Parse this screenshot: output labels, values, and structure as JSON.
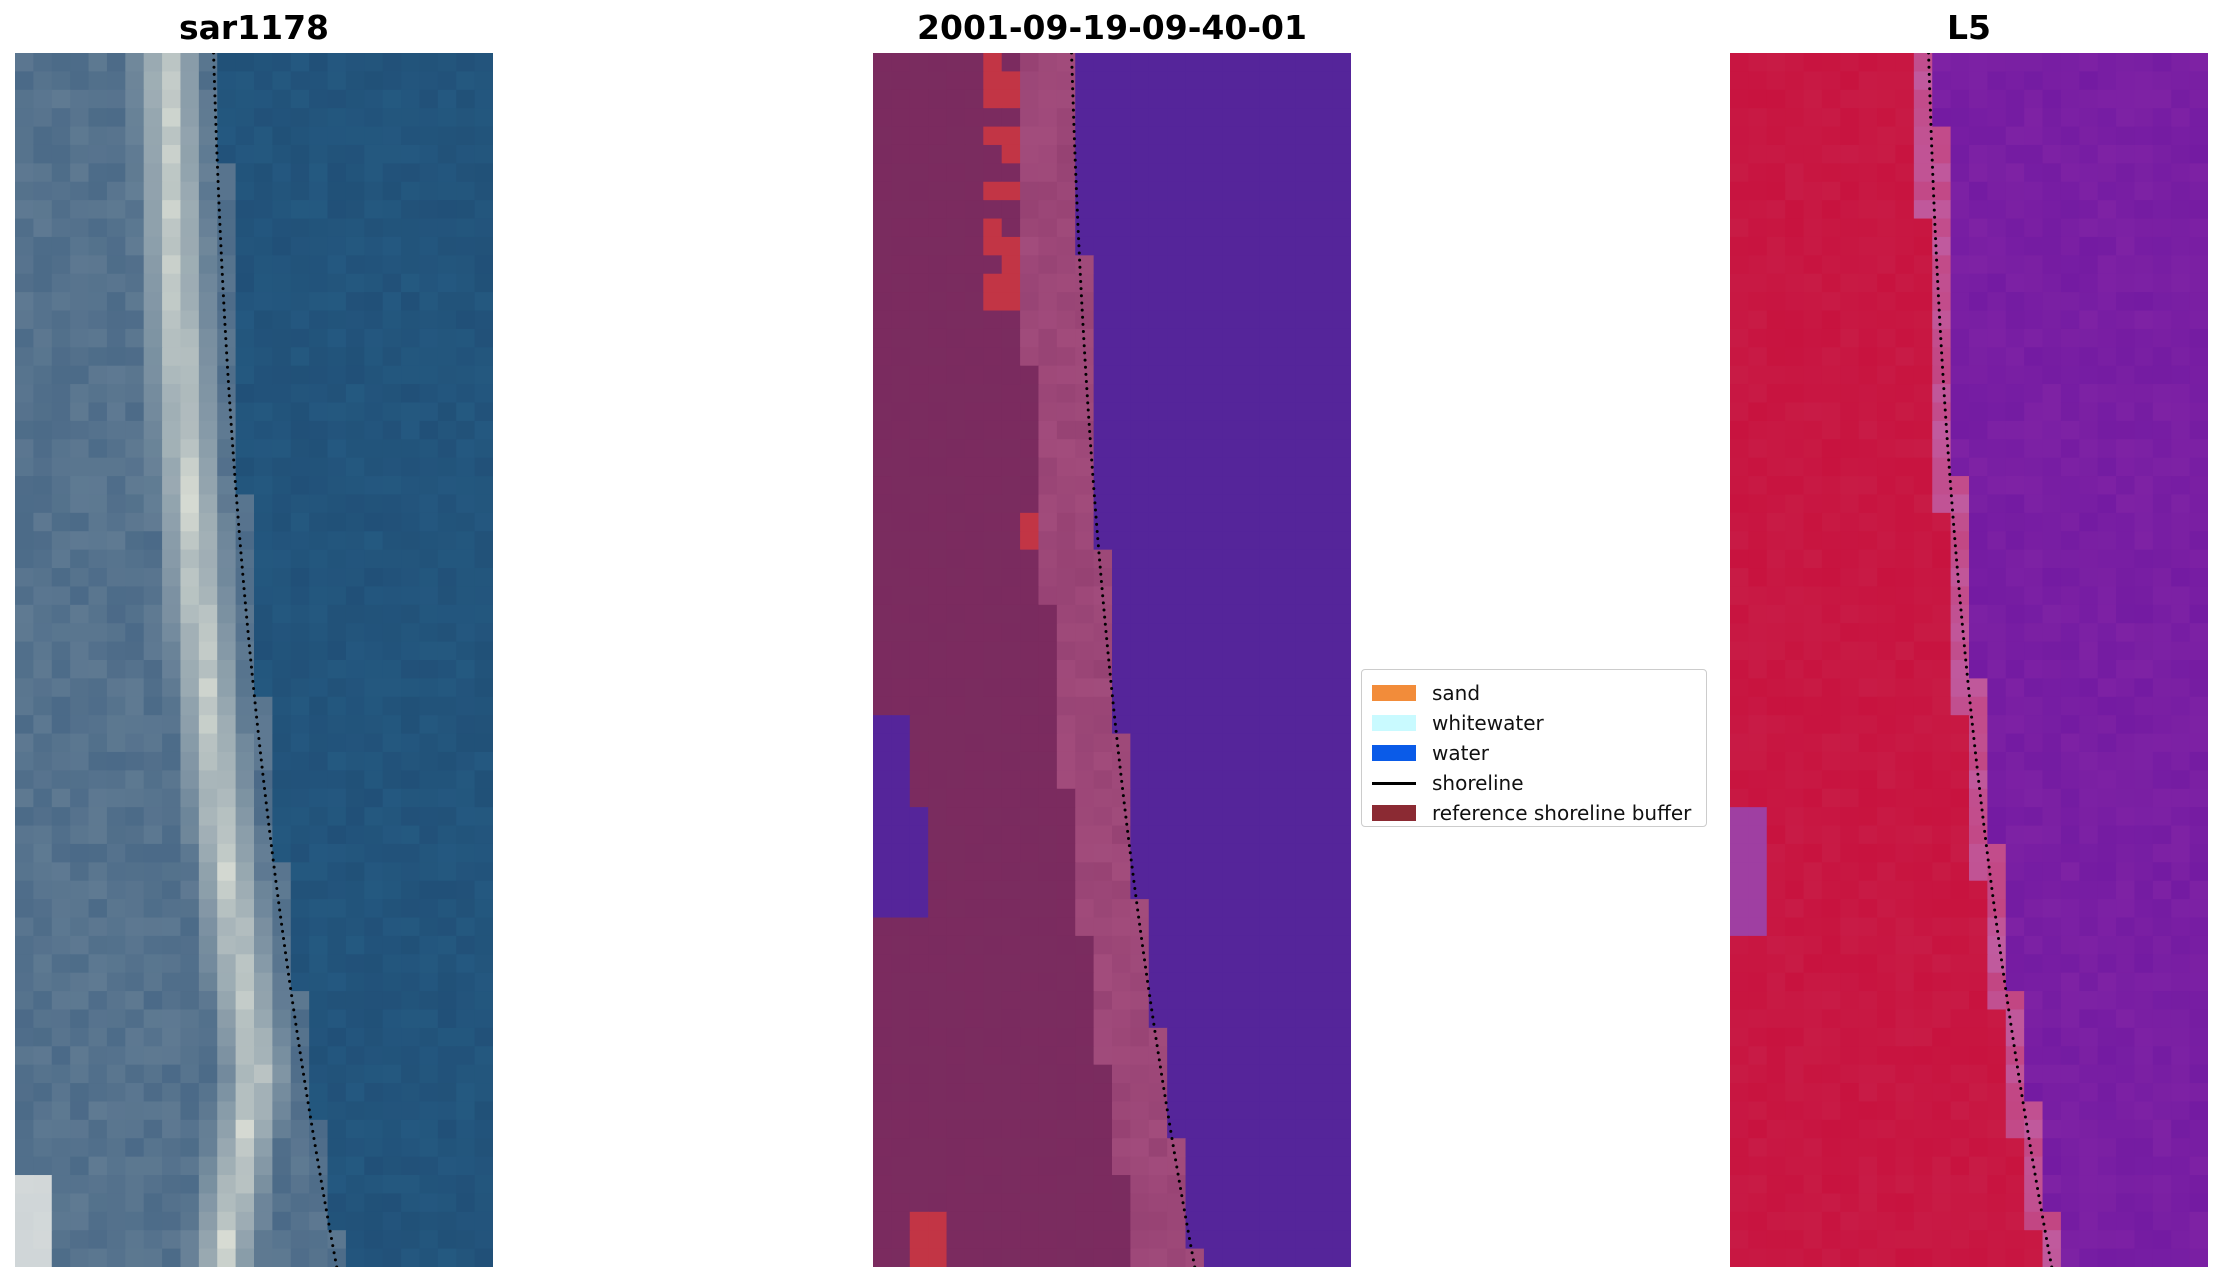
{
  "panels": [
    {
      "id": "rgb",
      "title": "sar1178"
    },
    {
      "id": "classified",
      "title": "2001-09-19-09-40-01"
    },
    {
      "id": "index",
      "title": "L5"
    }
  ],
  "legend": {
    "items": [
      {
        "label": "sand",
        "color": "#f28c3a",
        "kind": "patch"
      },
      {
        "label": "whitewater",
        "color": "#c9faff",
        "kind": "patch"
      },
      {
        "label": "water",
        "color": "#0a5be8",
        "kind": "patch"
      },
      {
        "label": "shoreline",
        "color": "#000000",
        "kind": "line"
      },
      {
        "label": "reference shoreline buffer",
        "color": "#8b2a33",
        "kind": "patch"
      }
    ]
  },
  "colors": {
    "rgb_water": "#265f86",
    "rgb_land": "#5f7a92",
    "rgb_surf": "#d9ddd4",
    "class_water": "#55259a",
    "class_buffer": "#7b2b5f",
    "class_beach": "#a24c7c",
    "class_red": "#c23545",
    "index_land": "#c8133f",
    "index_water": "#7e22a4",
    "index_edge": "#c05b9f"
  }
}
